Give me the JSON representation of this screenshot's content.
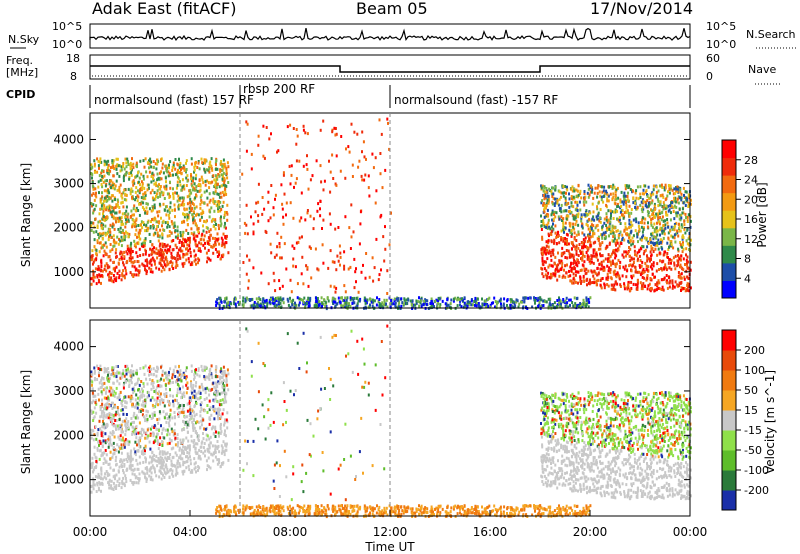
{
  "header": {
    "station": "Adak East (fitACF)",
    "beam": "Beam 05",
    "date": "17/Nov/2014"
  },
  "top_strip": {
    "nsky_label": "N.Sky",
    "nsearch_label": "N.Search",
    "left_ticks": [
      "10^5",
      "10^0"
    ],
    "right_ticks": [
      "10^5",
      "10^0"
    ],
    "freq_label_1": "Freq.",
    "freq_label_2": "[MHz]",
    "freq_ticks": [
      "18",
      "8"
    ],
    "nave_label": "Nave",
    "nave_ticks": [
      "60",
      "0"
    ],
    "cpid_label": "CPID",
    "cpid_segments": [
      {
        "label": "normalsound (fast) 157 RF",
        "start": 0,
        "end": 6
      },
      {
        "label": "rbsp 200 RF",
        "start": 6,
        "end": 12
      },
      {
        "label": "normalsound (fast) -157 RF",
        "start": 12,
        "end": 24
      }
    ]
  },
  "power_colorbar": {
    "label": "Power [dB]",
    "ticks": [
      "28",
      "24",
      "20",
      "16",
      "12",
      "8",
      "4"
    ],
    "colors": [
      "#0000ff",
      "#1d4ea8",
      "#2f8a4a",
      "#7ab648",
      "#e6c21a",
      "#f39a12",
      "#f26a0f",
      "#ef2b0a",
      "#ff0000"
    ]
  },
  "velocity_colorbar": {
    "label": "Velocity [m s^-1]",
    "ticks": [
      "200",
      "100",
      "50",
      "15",
      "-15",
      "-50",
      "-100",
      "-200"
    ],
    "colors": [
      "#1a2fa8",
      "#2a7a3a",
      "#5ebd2a",
      "#8fe04a",
      "#c8c8c8",
      "#f5a623",
      "#f07a10",
      "#e84a0a",
      "#ff0000"
    ]
  },
  "chart_data": [
    {
      "type": "heatmap",
      "title": "",
      "ylabel": "Slant Range [km]",
      "ylim": [
        180,
        4600
      ],
      "yticks": [
        "1000",
        "2000",
        "3000",
        "4000"
      ],
      "xlim": [
        0,
        24
      ],
      "xticks": [],
      "grid": false,
      "quantity": "Power [dB]"
    },
    {
      "type": "heatmap",
      "title": "",
      "ylabel": "Slant Range [km]",
      "xlabel": "Time UT",
      "ylim": [
        180,
        4600
      ],
      "yticks": [
        "1000",
        "2000",
        "3000",
        "4000"
      ],
      "xlim": [
        0,
        24
      ],
      "xticks": [
        "00:00",
        "04:00",
        "08:00",
        "12:00",
        "16:00",
        "20:00",
        "00:00"
      ],
      "grid": false,
      "quantity": "Velocity [m s^-1]"
    }
  ]
}
